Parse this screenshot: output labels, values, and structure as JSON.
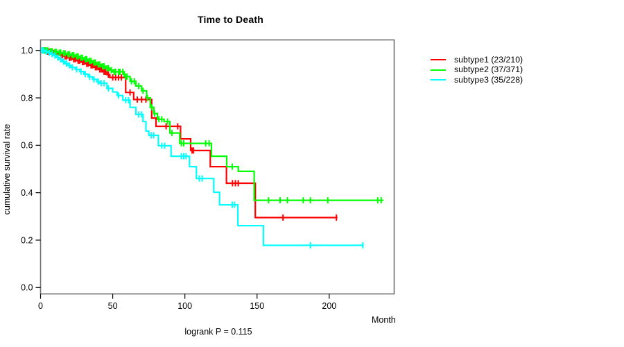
{
  "title": "Time to Death",
  "chart_data": {
    "type": "line",
    "variant": "kaplan-meier-step",
    "title": "Time to Death",
    "xlabel": "Month",
    "ylabel": "cumulative survival rate",
    "annotation": "logrank P = 0.115",
    "xlim": [
      0,
      245
    ],
    "ylim": [
      0.0,
      1.0
    ],
    "x_ticks": [
      0,
      50,
      100,
      150,
      200
    ],
    "y_ticks": [
      "0.0",
      "0.2",
      "0.4",
      "0.6",
      "0.8",
      "1.0"
    ],
    "grid": false,
    "legend_position": "right-outside",
    "series": [
      {
        "name": "subtype1",
        "label": "subtype1 (23/210)",
        "color": "#ff0000",
        "steps": [
          [
            0,
            1.0
          ],
          [
            4,
            0.995
          ],
          [
            7,
            0.99
          ],
          [
            10,
            0.985
          ],
          [
            13,
            0.98
          ],
          [
            16,
            0.975
          ],
          [
            19,
            0.969
          ],
          [
            22,
            0.963
          ],
          [
            25,
            0.957
          ],
          [
            28,
            0.951
          ],
          [
            31,
            0.944
          ],
          [
            34,
            0.937
          ],
          [
            37,
            0.929
          ],
          [
            40,
            0.92
          ],
          [
            43,
            0.91
          ],
          [
            46,
            0.898
          ],
          [
            48,
            0.886
          ],
          [
            59,
            0.823
          ],
          [
            64.5,
            0.793
          ],
          [
            77,
            0.715
          ],
          [
            80,
            0.68
          ],
          [
            97,
            0.627
          ],
          [
            104,
            0.578
          ],
          [
            117.6,
            0.51
          ],
          [
            128.8,
            0.44
          ],
          [
            148.8,
            0.295
          ]
        ],
        "end_time": 205.7,
        "censor_times": [
          2,
          3,
          5,
          6,
          8,
          9,
          11,
          12,
          14,
          15,
          17,
          18,
          20,
          21,
          23,
          24,
          26,
          27,
          29,
          30,
          32,
          33,
          35,
          36,
          38,
          39,
          41,
          42,
          44,
          45,
          47,
          50,
          52,
          54,
          56,
          62,
          67,
          70,
          73,
          87,
          95,
          105,
          106,
          133,
          135,
          137,
          168,
          205
        ]
      },
      {
        "name": "subtype2",
        "label": "subtype2 (37/371)",
        "color": "#00ff00",
        "steps": [
          [
            0,
            1.0
          ],
          [
            6,
            0.997
          ],
          [
            9,
            0.994
          ],
          [
            12,
            0.991
          ],
          [
            15,
            0.988
          ],
          [
            18,
            0.984
          ],
          [
            21,
            0.98
          ],
          [
            24,
            0.975
          ],
          [
            27,
            0.969
          ],
          [
            30,
            0.963
          ],
          [
            33,
            0.956
          ],
          [
            36,
            0.949
          ],
          [
            39,
            0.941
          ],
          [
            42,
            0.933
          ],
          [
            45,
            0.925
          ],
          [
            48,
            0.917
          ],
          [
            50,
            0.91
          ],
          [
            58,
            0.89
          ],
          [
            62,
            0.87
          ],
          [
            66,
            0.85
          ],
          [
            70,
            0.83
          ],
          [
            73.5,
            0.8
          ],
          [
            76,
            0.76
          ],
          [
            78.5,
            0.734
          ],
          [
            81,
            0.71
          ],
          [
            85.6,
            0.7
          ],
          [
            89.6,
            0.652
          ],
          [
            96.4,
            0.608
          ],
          [
            118.4,
            0.554
          ],
          [
            129,
            0.51
          ],
          [
            137,
            0.49
          ],
          [
            148,
            0.368
          ]
        ],
        "end_time": 237.6,
        "censor_times": [
          1,
          2,
          3,
          4,
          5,
          7,
          8,
          10,
          11,
          13,
          14,
          16,
          17,
          19,
          20,
          22,
          23,
          25,
          26,
          28,
          29,
          31,
          32,
          34,
          35,
          37,
          38,
          40,
          41,
          43,
          44,
          46,
          47,
          49,
          51,
          52,
          54,
          55,
          57,
          59,
          60,
          63,
          65,
          68,
          71,
          74,
          77,
          79,
          82,
          84,
          88,
          91,
          97.6,
          99.2,
          114.4,
          116.8,
          132.8,
          158,
          166,
          171,
          182,
          187,
          199,
          233.6,
          236
        ]
      },
      {
        "name": "subtype3",
        "label": "subtype3 (35/228)",
        "color": "#00ffff",
        "steps": [
          [
            0,
            1.0
          ],
          [
            3,
            0.995
          ],
          [
            5,
            0.99
          ],
          [
            7,
            0.985
          ],
          [
            9,
            0.978
          ],
          [
            11,
            0.97
          ],
          [
            13,
            0.962
          ],
          [
            15,
            0.953
          ],
          [
            17,
            0.945
          ],
          [
            19,
            0.937
          ],
          [
            21,
            0.929
          ],
          [
            24,
            0.92
          ],
          [
            27,
            0.911
          ],
          [
            30,
            0.9
          ],
          [
            33,
            0.889
          ],
          [
            36,
            0.878
          ],
          [
            39,
            0.868
          ],
          [
            41,
            0.862
          ],
          [
            46,
            0.84
          ],
          [
            50,
            0.825
          ],
          [
            53,
            0.81
          ],
          [
            57,
            0.79
          ],
          [
            62,
            0.76
          ],
          [
            66,
            0.73
          ],
          [
            71,
            0.7
          ],
          [
            73,
            0.66
          ],
          [
            75,
            0.642
          ],
          [
            81.6,
            0.598
          ],
          [
            90.4,
            0.554
          ],
          [
            103.2,
            0.51
          ],
          [
            108,
            0.46
          ],
          [
            120,
            0.402
          ],
          [
            124,
            0.349
          ],
          [
            136.7,
            0.261
          ],
          [
            154.4,
            0.178
          ]
        ],
        "end_time": 224,
        "censor_times": [
          1,
          2,
          4,
          6,
          8,
          10,
          12,
          14,
          16,
          18,
          20,
          22,
          25,
          28,
          31,
          34,
          37,
          40,
          42,
          44,
          47,
          54,
          59,
          61,
          68,
          70,
          76.6,
          78.4,
          84,
          86,
          97.6,
          99.2,
          100.8,
          110,
          112,
          132.8,
          134.4,
          187,
          223.3
        ]
      }
    ]
  }
}
